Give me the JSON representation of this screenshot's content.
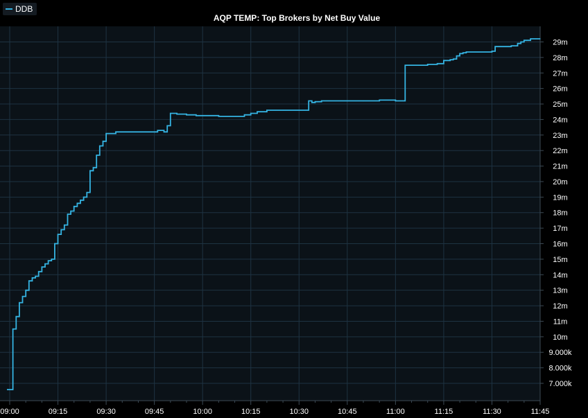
{
  "legend": {
    "label": "DDB",
    "color": "#35b4e3"
  },
  "colors": {
    "background": "#000000",
    "plot_background": "#0b1218",
    "grid": "#1e3342",
    "axis": "#3c4a55",
    "line": "#35b4e3"
  },
  "chart_data": {
    "type": "line",
    "title": "AQP TEMP: Top Brokers by Net Buy Value",
    "xlabel": "",
    "ylabel": "",
    "x_tick_labels": [
      "09:00",
      "09:15",
      "09:30",
      "09:45",
      "10:00",
      "10:15",
      "10:30",
      "10:45",
      "11:00",
      "11:15",
      "11:30",
      "11:45"
    ],
    "y_tick_labels": [
      "7.000k",
      "8.000k",
      "9.000k",
      "10m",
      "11m",
      "12m",
      "13m",
      "14m",
      "15m",
      "16m",
      "17m",
      "18m",
      "19m",
      "20m",
      "21m",
      "22m",
      "23m",
      "24m",
      "25m",
      "26m",
      "27m",
      "28m",
      "29m"
    ],
    "xlim": [
      "09:00",
      "11:45"
    ],
    "ylim": [
      6.6,
      29.5
    ],
    "y_unit": "m",
    "grid": true,
    "legend_position": "top-left",
    "series": [
      {
        "name": "DDB",
        "step": true,
        "x": [
          "09:00",
          "09:01",
          "09:02",
          "09:03",
          "09:04",
          "09:05",
          "09:06",
          "09:07",
          "09:08",
          "09:09",
          "09:10",
          "09:11",
          "09:12",
          "09:13",
          "09:14",
          "09:15",
          "09:16",
          "09:17",
          "09:18",
          "09:19",
          "09:20",
          "09:21",
          "09:22",
          "09:23",
          "09:24",
          "09:25",
          "09:26",
          "09:27",
          "09:28",
          "09:29",
          "09:30",
          "09:33",
          "09:40",
          "09:46",
          "09:48",
          "09:49",
          "09:50",
          "09:52",
          "09:55",
          "09:58",
          "10:05",
          "10:10",
          "10:13",
          "10:15",
          "10:17",
          "10:20",
          "10:25",
          "10:33",
          "10:34",
          "10:35",
          "10:37",
          "10:40",
          "10:50",
          "10:55",
          "11:00",
          "11:03",
          "11:10",
          "11:13",
          "11:15",
          "11:17",
          "11:18",
          "11:19",
          "11:20",
          "11:21",
          "11:22",
          "11:30",
          "11:31",
          "11:36",
          "11:38",
          "11:39",
          "11:40",
          "11:42",
          "11:45"
        ],
        "y": [
          6.6,
          10.5,
          11.3,
          12.2,
          12.6,
          13.0,
          13.6,
          13.8,
          13.9,
          14.2,
          14.5,
          14.7,
          14.9,
          15.0,
          16.0,
          16.6,
          16.9,
          17.2,
          17.9,
          18.1,
          18.4,
          18.6,
          18.8,
          19.0,
          19.3,
          20.7,
          20.9,
          21.7,
          22.3,
          22.6,
          23.1,
          23.2,
          23.2,
          23.3,
          23.2,
          23.6,
          24.4,
          24.35,
          24.3,
          24.25,
          24.2,
          24.2,
          24.3,
          24.4,
          24.5,
          24.6,
          24.6,
          25.2,
          25.1,
          25.15,
          25.2,
          25.2,
          25.2,
          25.25,
          25.2,
          27.5,
          27.55,
          27.6,
          27.8,
          27.85,
          27.9,
          28.1,
          28.25,
          28.3,
          28.35,
          28.4,
          28.7,
          28.75,
          28.9,
          29.0,
          29.1,
          29.2,
          29.2
        ]
      }
    ]
  }
}
